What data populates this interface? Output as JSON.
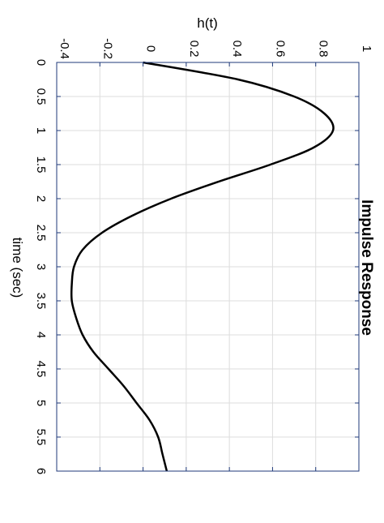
{
  "chart_data": {
    "type": "line",
    "title": "Impulse Response",
    "xlabel": "time (sec)",
    "ylabel": "h(t)",
    "orientation": "rotated-90-clockwise",
    "grid": true,
    "xlim": [
      0,
      6
    ],
    "ylim": [
      -0.4,
      1
    ],
    "xticks": [
      0,
      0.5,
      1,
      1.5,
      2,
      2.5,
      3,
      3.5,
      4,
      4.5,
      5,
      5.5,
      6
    ],
    "xtick_labels": [
      "0",
      "0.5",
      "1",
      "1.5",
      "2",
      "2.5",
      "3",
      "3.5",
      "4",
      "4.5",
      "5",
      "5.5",
      "6"
    ],
    "yticks": [
      -0.4,
      -0.2,
      0,
      0.2,
      0.4,
      0.6,
      0.8,
      1
    ],
    "ytick_labels": [
      "-0.4",
      "-0.2",
      "0",
      "0.2",
      "0.4",
      "0.6",
      "0.8",
      "1"
    ],
    "colors": {
      "line": "#000000",
      "axes": "#1f3a7a",
      "grid": "#dddddd"
    },
    "series": [
      {
        "x": [
          0,
          0.25,
          0.5,
          0.75,
          1.0,
          1.25,
          1.5,
          1.75,
          2.0,
          2.25,
          2.5,
          2.75,
          3.0,
          3.25,
          3.5,
          3.75,
          4.0,
          4.25,
          4.5,
          4.75,
          5.0,
          5.25,
          5.5,
          5.75,
          6.0
        ],
        "y": [
          0,
          0.44,
          0.7,
          0.84,
          0.88,
          0.79,
          0.59,
          0.35,
          0.13,
          -0.05,
          -0.19,
          -0.28,
          -0.32,
          -0.33,
          -0.33,
          -0.31,
          -0.28,
          -0.23,
          -0.16,
          -0.09,
          -0.03,
          0.03,
          0.07,
          0.09,
          0.11
        ]
      }
    ]
  }
}
